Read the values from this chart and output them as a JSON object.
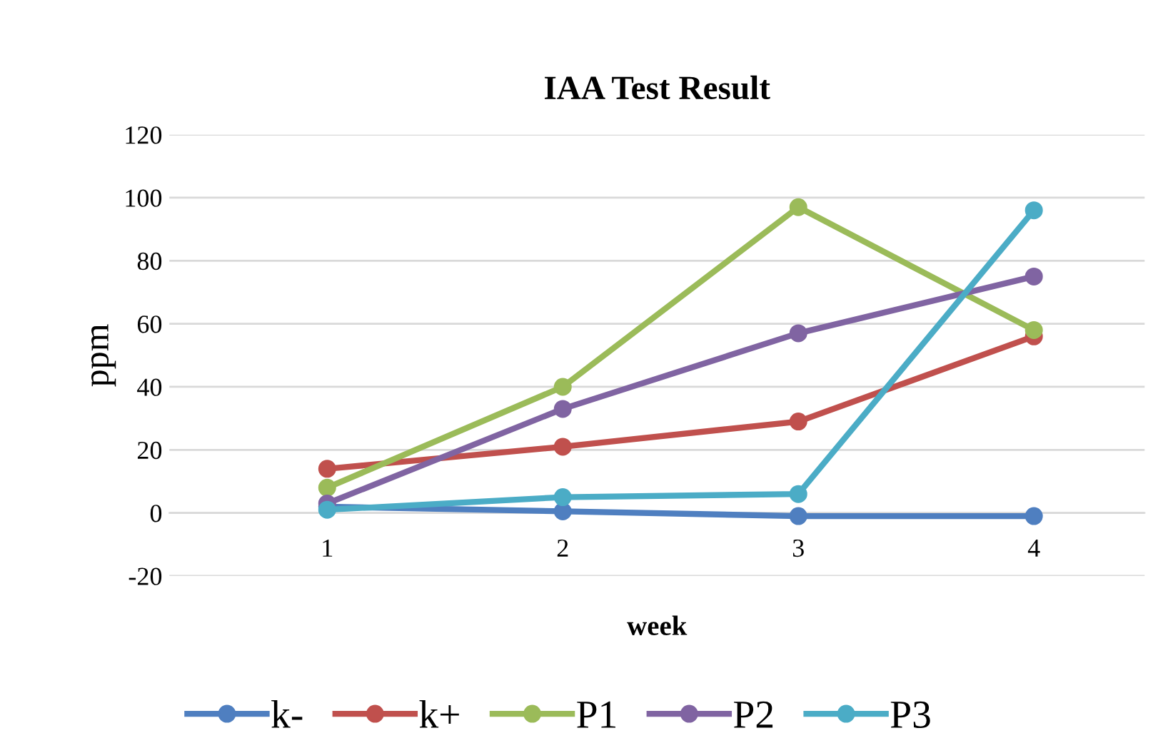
{
  "chart_data": {
    "type": "line",
    "title": "IAA Test Result",
    "xlabel": "week",
    "ylabel": "ppm",
    "categories": [
      "1",
      "2",
      "3",
      "4"
    ],
    "series": [
      {
        "name": "k-",
        "color": "#4f7fc0",
        "values": [
          2,
          0.5,
          -1,
          -1
        ]
      },
      {
        "name": "k+",
        "color": "#c0504d",
        "values": [
          14,
          21,
          29,
          56
        ]
      },
      {
        "name": "P1",
        "color": "#9bbb59",
        "values": [
          8,
          40,
          97,
          58
        ]
      },
      {
        "name": "P2",
        "color": "#8064a2",
        "values": [
          3,
          33,
          57,
          75
        ]
      },
      {
        "name": "P3",
        "color": "#4bacc6",
        "values": [
          1,
          5,
          6,
          96
        ]
      }
    ],
    "ylim": [
      -20,
      120
    ],
    "yticks": [
      -20,
      0,
      20,
      40,
      60,
      80,
      100,
      120
    ],
    "grid": "y",
    "legend": "bottom",
    "marker": "circle",
    "line_style": "solid"
  }
}
